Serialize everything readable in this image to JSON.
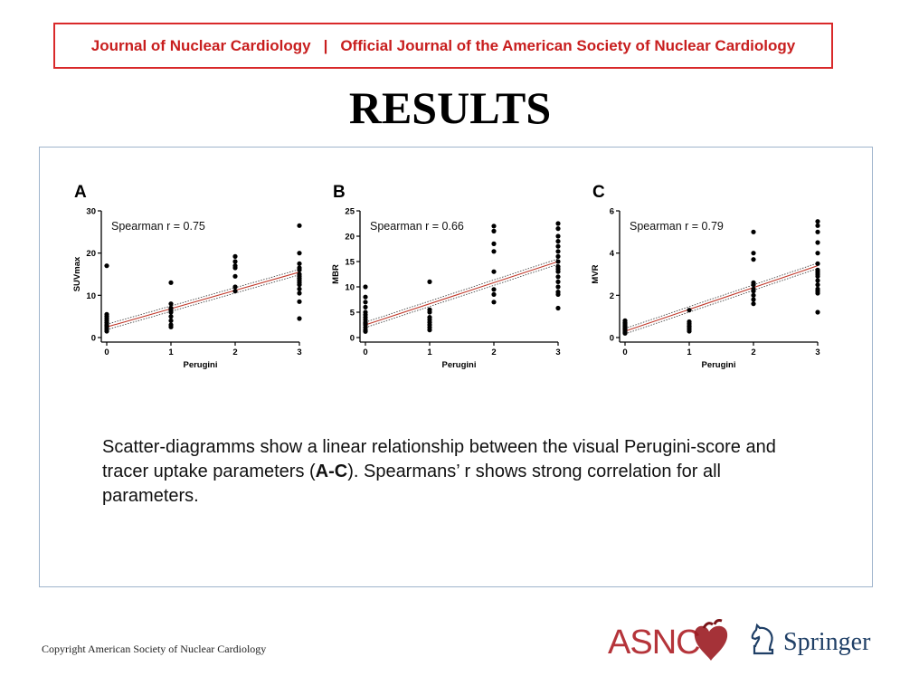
{
  "banner": {
    "left": "Journal of Nuclear Cardiology",
    "separator": "|",
    "right": "Official Journal of the American Society of Nuclear Cardiology"
  },
  "title": "RESULTS",
  "caption": {
    "part1": "Scatter-diagramms show a linear relationship between the visual Perugini-score and tracer uptake parameters (",
    "bold": "A-C",
    "part2": "). Spearmans’ r shows strong correlation for all parameters."
  },
  "copyright": "Copyright  American Society of Nuclear Cardiology",
  "logos": {
    "asnc": "ASNC",
    "springer": "Springer"
  },
  "colors": {
    "banner_red": "#c81e1e",
    "regression_line": "#c0392b",
    "frame_blue": "#9fb4cc"
  },
  "chart_data": [
    {
      "type": "scatter",
      "panel": "A",
      "annotation": "Spearman r = 0.75",
      "xlabel": "Perugini",
      "ylabel": "SUVmax",
      "xticks": [
        0,
        1,
        2,
        3
      ],
      "yticks": [
        0,
        10,
        20,
        30
      ],
      "xlim": [
        0,
        3
      ],
      "ylim": [
        0,
        30
      ],
      "regression": {
        "x": [
          0,
          3
        ],
        "y": [
          2.5,
          15.5
        ]
      },
      "points": {
        "x": [
          0,
          0,
          0,
          0,
          0,
          0,
          0,
          0,
          0,
          0,
          0,
          1,
          1,
          1,
          1,
          1,
          1,
          1,
          1,
          1,
          2,
          2,
          2,
          2,
          2,
          2,
          2,
          3,
          3,
          3,
          3,
          3,
          3,
          3,
          3,
          3,
          3,
          3,
          3,
          3,
          3,
          3
        ],
        "y": [
          17,
          5.5,
          5,
          4.5,
          4,
          3.5,
          3,
          2.8,
          2.5,
          2,
          1.5,
          13,
          8,
          7,
          6.5,
          6,
          5,
          4,
          3,
          2.5,
          19.2,
          18,
          17,
          16.5,
          14.5,
          12,
          11,
          26.5,
          20,
          17.5,
          16.5,
          16,
          15,
          14.5,
          14,
          13.5,
          13,
          12.5,
          11.5,
          10.5,
          8.5,
          4.5
        ]
      }
    },
    {
      "type": "scatter",
      "panel": "B",
      "annotation": "Spearman r = 0.66",
      "xlabel": "Perugini",
      "ylabel": "MBR",
      "xticks": [
        0,
        1,
        2,
        3
      ],
      "yticks": [
        0,
        5,
        10,
        15,
        20,
        25
      ],
      "xlim": [
        0,
        3
      ],
      "ylim": [
        0,
        25
      ],
      "regression": {
        "x": [
          0,
          3
        ],
        "y": [
          2.5,
          15.0
        ]
      },
      "points": {
        "x": [
          0,
          0,
          0,
          0,
          0,
          0,
          0,
          0,
          0,
          0,
          0,
          0,
          0,
          0,
          1,
          1,
          1,
          1,
          1,
          1,
          1,
          1,
          1,
          2,
          2,
          2,
          2,
          2,
          2,
          2,
          2,
          3,
          3,
          3,
          3,
          3,
          3,
          3,
          3,
          3,
          3,
          3,
          3,
          3,
          3,
          3,
          3,
          3
        ],
        "y": [
          10,
          8,
          7,
          6,
          5,
          4.5,
          4,
          3.5,
          3,
          2.8,
          2.5,
          2,
          1.5,
          1.2,
          11,
          5.5,
          5,
          4,
          3.5,
          3,
          2.5,
          2,
          1.5,
          22,
          21,
          18.5,
          17,
          13,
          9.5,
          8.5,
          7,
          22.5,
          21.5,
          20,
          19,
          18,
          17,
          16,
          15,
          14,
          13.5,
          13,
          12,
          11,
          10,
          9,
          8.5,
          5.8
        ]
      }
    },
    {
      "type": "scatter",
      "panel": "C",
      "annotation": "Spearman r = 0.79",
      "xlabel": "Perugini",
      "ylabel": "MVR",
      "xticks": [
        0,
        1,
        2,
        3
      ],
      "yticks": [
        0,
        2,
        4,
        6
      ],
      "xlim": [
        0,
        3
      ],
      "ylim": [
        0,
        6
      ],
      "regression": {
        "x": [
          0,
          3
        ],
        "y": [
          0.3,
          3.4
        ]
      },
      "points": {
        "x": [
          0,
          0,
          0,
          0,
          0,
          0,
          0,
          0,
          0,
          0,
          0,
          0,
          1,
          1,
          1,
          1,
          1,
          1,
          1,
          2,
          2,
          2,
          2,
          2,
          2,
          2,
          2,
          2,
          2,
          3,
          3,
          3,
          3,
          3,
          3,
          3,
          3,
          3,
          3,
          3,
          3,
          3,
          3,
          3,
          3
        ],
        "y": [
          0.8,
          0.7,
          0.65,
          0.6,
          0.55,
          0.5,
          0.45,
          0.4,
          0.35,
          0.3,
          0.25,
          0.2,
          1.3,
          0.75,
          0.65,
          0.55,
          0.5,
          0.4,
          0.3,
          5,
          4,
          3.7,
          2.6,
          2.5,
          2.3,
          2.2,
          2,
          1.8,
          1.6,
          5.5,
          5.3,
          5,
          4.5,
          4,
          3.5,
          3.2,
          3.1,
          3,
          2.9,
          2.7,
          2.5,
          2.3,
          2.2,
          2.1,
          1.2
        ]
      }
    }
  ]
}
